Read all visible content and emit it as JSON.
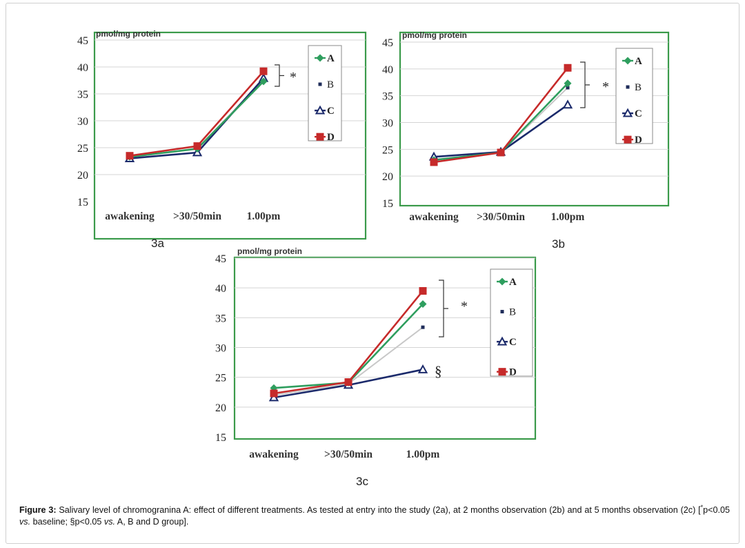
{
  "panels": [
    {
      "id": "3a",
      "label": "3a"
    },
    {
      "id": "3b",
      "label": "3b"
    },
    {
      "id": "3c",
      "label": "3c"
    }
  ],
  "caption": {
    "prefix": "Figure 3:",
    "part1": " Salivary level of chromogranina A: effect of different treatments. As tested at entry into the study (2a), at 2 months observation (2b) and at 5 months observation (2c) [",
    "star": "*",
    "part2": "p<0.05 ",
    "vs1": "vs.",
    "part3": " baseline; §p<0.05 ",
    "vs2": "vs.",
    "part4": " A, B and D group]."
  },
  "series_style": {
    "A": {
      "color": "#2e9e5e",
      "marker": "diamond"
    },
    "B": {
      "color": "#c8c8c8",
      "marker": "square-small",
      "marker_color": "#1f2d5a"
    },
    "C": {
      "color": "#1b2a6b",
      "marker": "triangle-open"
    },
    "D": {
      "color": "#c62a2a",
      "marker": "square"
    }
  },
  "chart_data": [
    {
      "type": "line",
      "panel": "3a",
      "ylabel": "pmol/mg protein",
      "categories": [
        "awakening",
        ">30/50min",
        "1.00pm"
      ],
      "ylim": [
        15,
        45
      ],
      "yticks": [
        15,
        20,
        25,
        30,
        35,
        40,
        45
      ],
      "grid": true,
      "legend": "top-right",
      "series": [
        {
          "name": "A",
          "values": [
            23.3,
            24.8,
            37.3
          ]
        },
        {
          "name": "B",
          "values": [
            23.2,
            24.9,
            37.6
          ]
        },
        {
          "name": "C",
          "values": [
            23.0,
            24.1,
            37.9
          ]
        },
        {
          "name": "D",
          "values": [
            23.5,
            25.3,
            39.2
          ]
        }
      ],
      "annotations": [
        {
          "text": "*",
          "kind": "bracket"
        }
      ]
    },
    {
      "type": "line",
      "panel": "3b",
      "ylabel": "pmol/mg protein",
      "categories": [
        "awakening",
        ">30/50min",
        "1.00pm"
      ],
      "ylim": [
        15,
        45
      ],
      "yticks": [
        15,
        20,
        25,
        30,
        35,
        40,
        45
      ],
      "grid": true,
      "legend": "top-right",
      "series": [
        {
          "name": "A",
          "values": [
            23.0,
            24.4,
            37.3
          ]
        },
        {
          "name": "B",
          "values": [
            23.1,
            24.4,
            36.5
          ]
        },
        {
          "name": "C",
          "values": [
            23.6,
            24.5,
            33.3
          ]
        },
        {
          "name": "D",
          "values": [
            22.6,
            24.4,
            40.2
          ]
        }
      ],
      "annotations": [
        {
          "text": "*",
          "kind": "bracket"
        }
      ]
    },
    {
      "type": "line",
      "panel": "3c",
      "ylabel": "pmol/mg protein",
      "categories": [
        "awakening",
        ">30/50min",
        "1.00pm"
      ],
      "ylim": [
        15,
        45
      ],
      "yticks": [
        15,
        20,
        25,
        30,
        35,
        40,
        45
      ],
      "grid": true,
      "legend": "top-right",
      "series": [
        {
          "name": "A",
          "values": [
            23.2,
            24.1,
            37.3
          ]
        },
        {
          "name": "B",
          "values": [
            22.0,
            23.9,
            33.4
          ]
        },
        {
          "name": "C",
          "values": [
            21.6,
            23.7,
            26.3
          ]
        },
        {
          "name": "D",
          "values": [
            22.3,
            24.2,
            39.5
          ]
        }
      ],
      "annotations": [
        {
          "text": "*",
          "kind": "bracket"
        },
        {
          "text": "§",
          "kind": "label"
        }
      ]
    }
  ]
}
